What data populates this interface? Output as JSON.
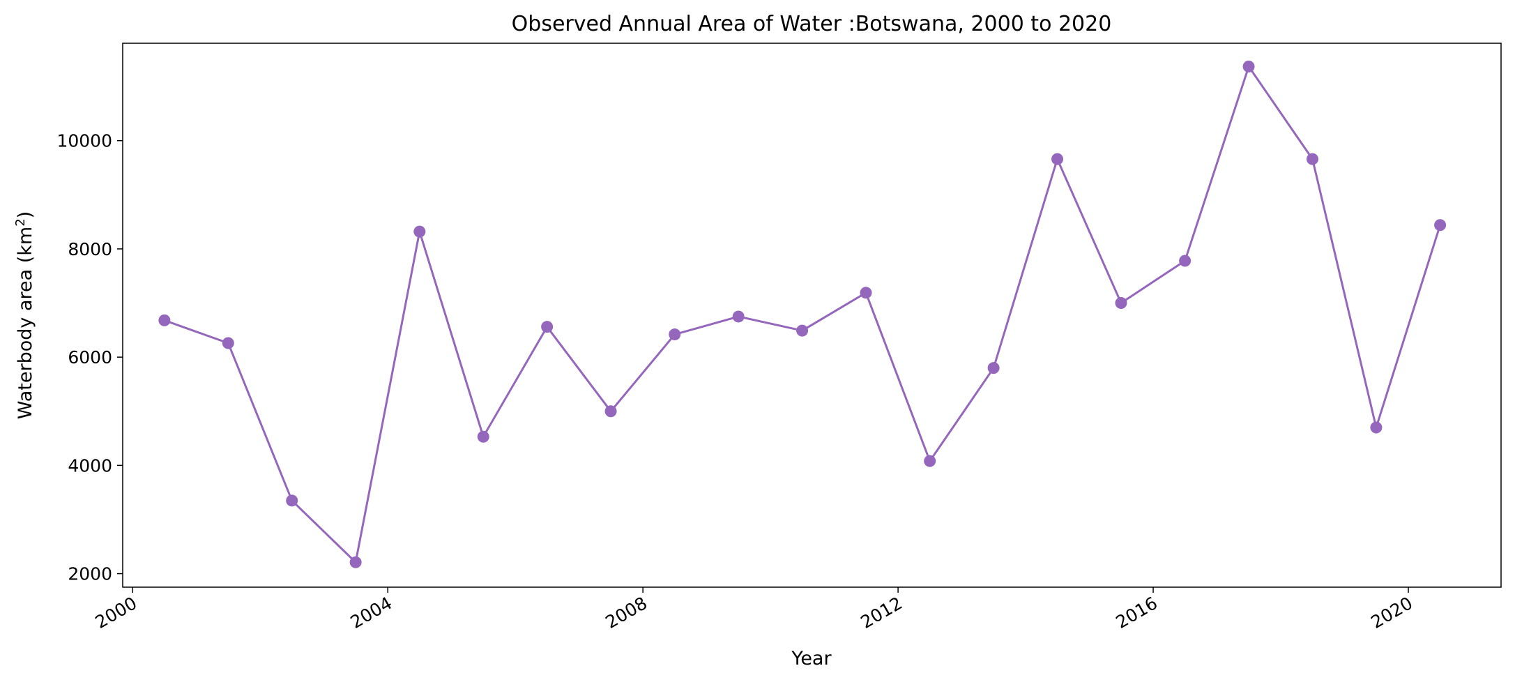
{
  "chart_data": {
    "type": "line",
    "title": "Observed Annual Area of Water :Botswana, 2000 to 2020",
    "xlabel": "Year",
    "ylabel_text": "Waterbody area (km",
    "ylabel_sup": "2",
    "ylabel_close": ")",
    "x_ticks": [
      "2000",
      "2004",
      "2008",
      "2012",
      "2016",
      "2020"
    ],
    "y_ticks": [
      "2000",
      "4000",
      "6000",
      "8000",
      "10000"
    ],
    "xlim": [
      "1999-11-05",
      "2021-06-15"
    ],
    "ylim": [
      1750,
      11800
    ],
    "grid": false,
    "line_color": "#9467bd",
    "series": [
      {
        "x": [
          "2000-07-01",
          "2001-07-01",
          "2002-07-01",
          "2003-07-01",
          "2004-07-01",
          "2005-07-01",
          "2006-07-01",
          "2007-07-01",
          "2008-07-01",
          "2009-07-01",
          "2010-07-01",
          "2011-07-01",
          "2012-07-01",
          "2013-07-01",
          "2014-07-01",
          "2015-07-01",
          "2016-07-01",
          "2017-07-01",
          "2018-07-01",
          "2019-07-01",
          "2020-07-01"
        ],
        "values": [
          6680,
          6260,
          3350,
          2210,
          8320,
          4530,
          6560,
          5000,
          6420,
          6750,
          6490,
          7190,
          4080,
          5800,
          9660,
          7000,
          7780,
          11370,
          9660,
          4700,
          8440
        ]
      }
    ]
  }
}
